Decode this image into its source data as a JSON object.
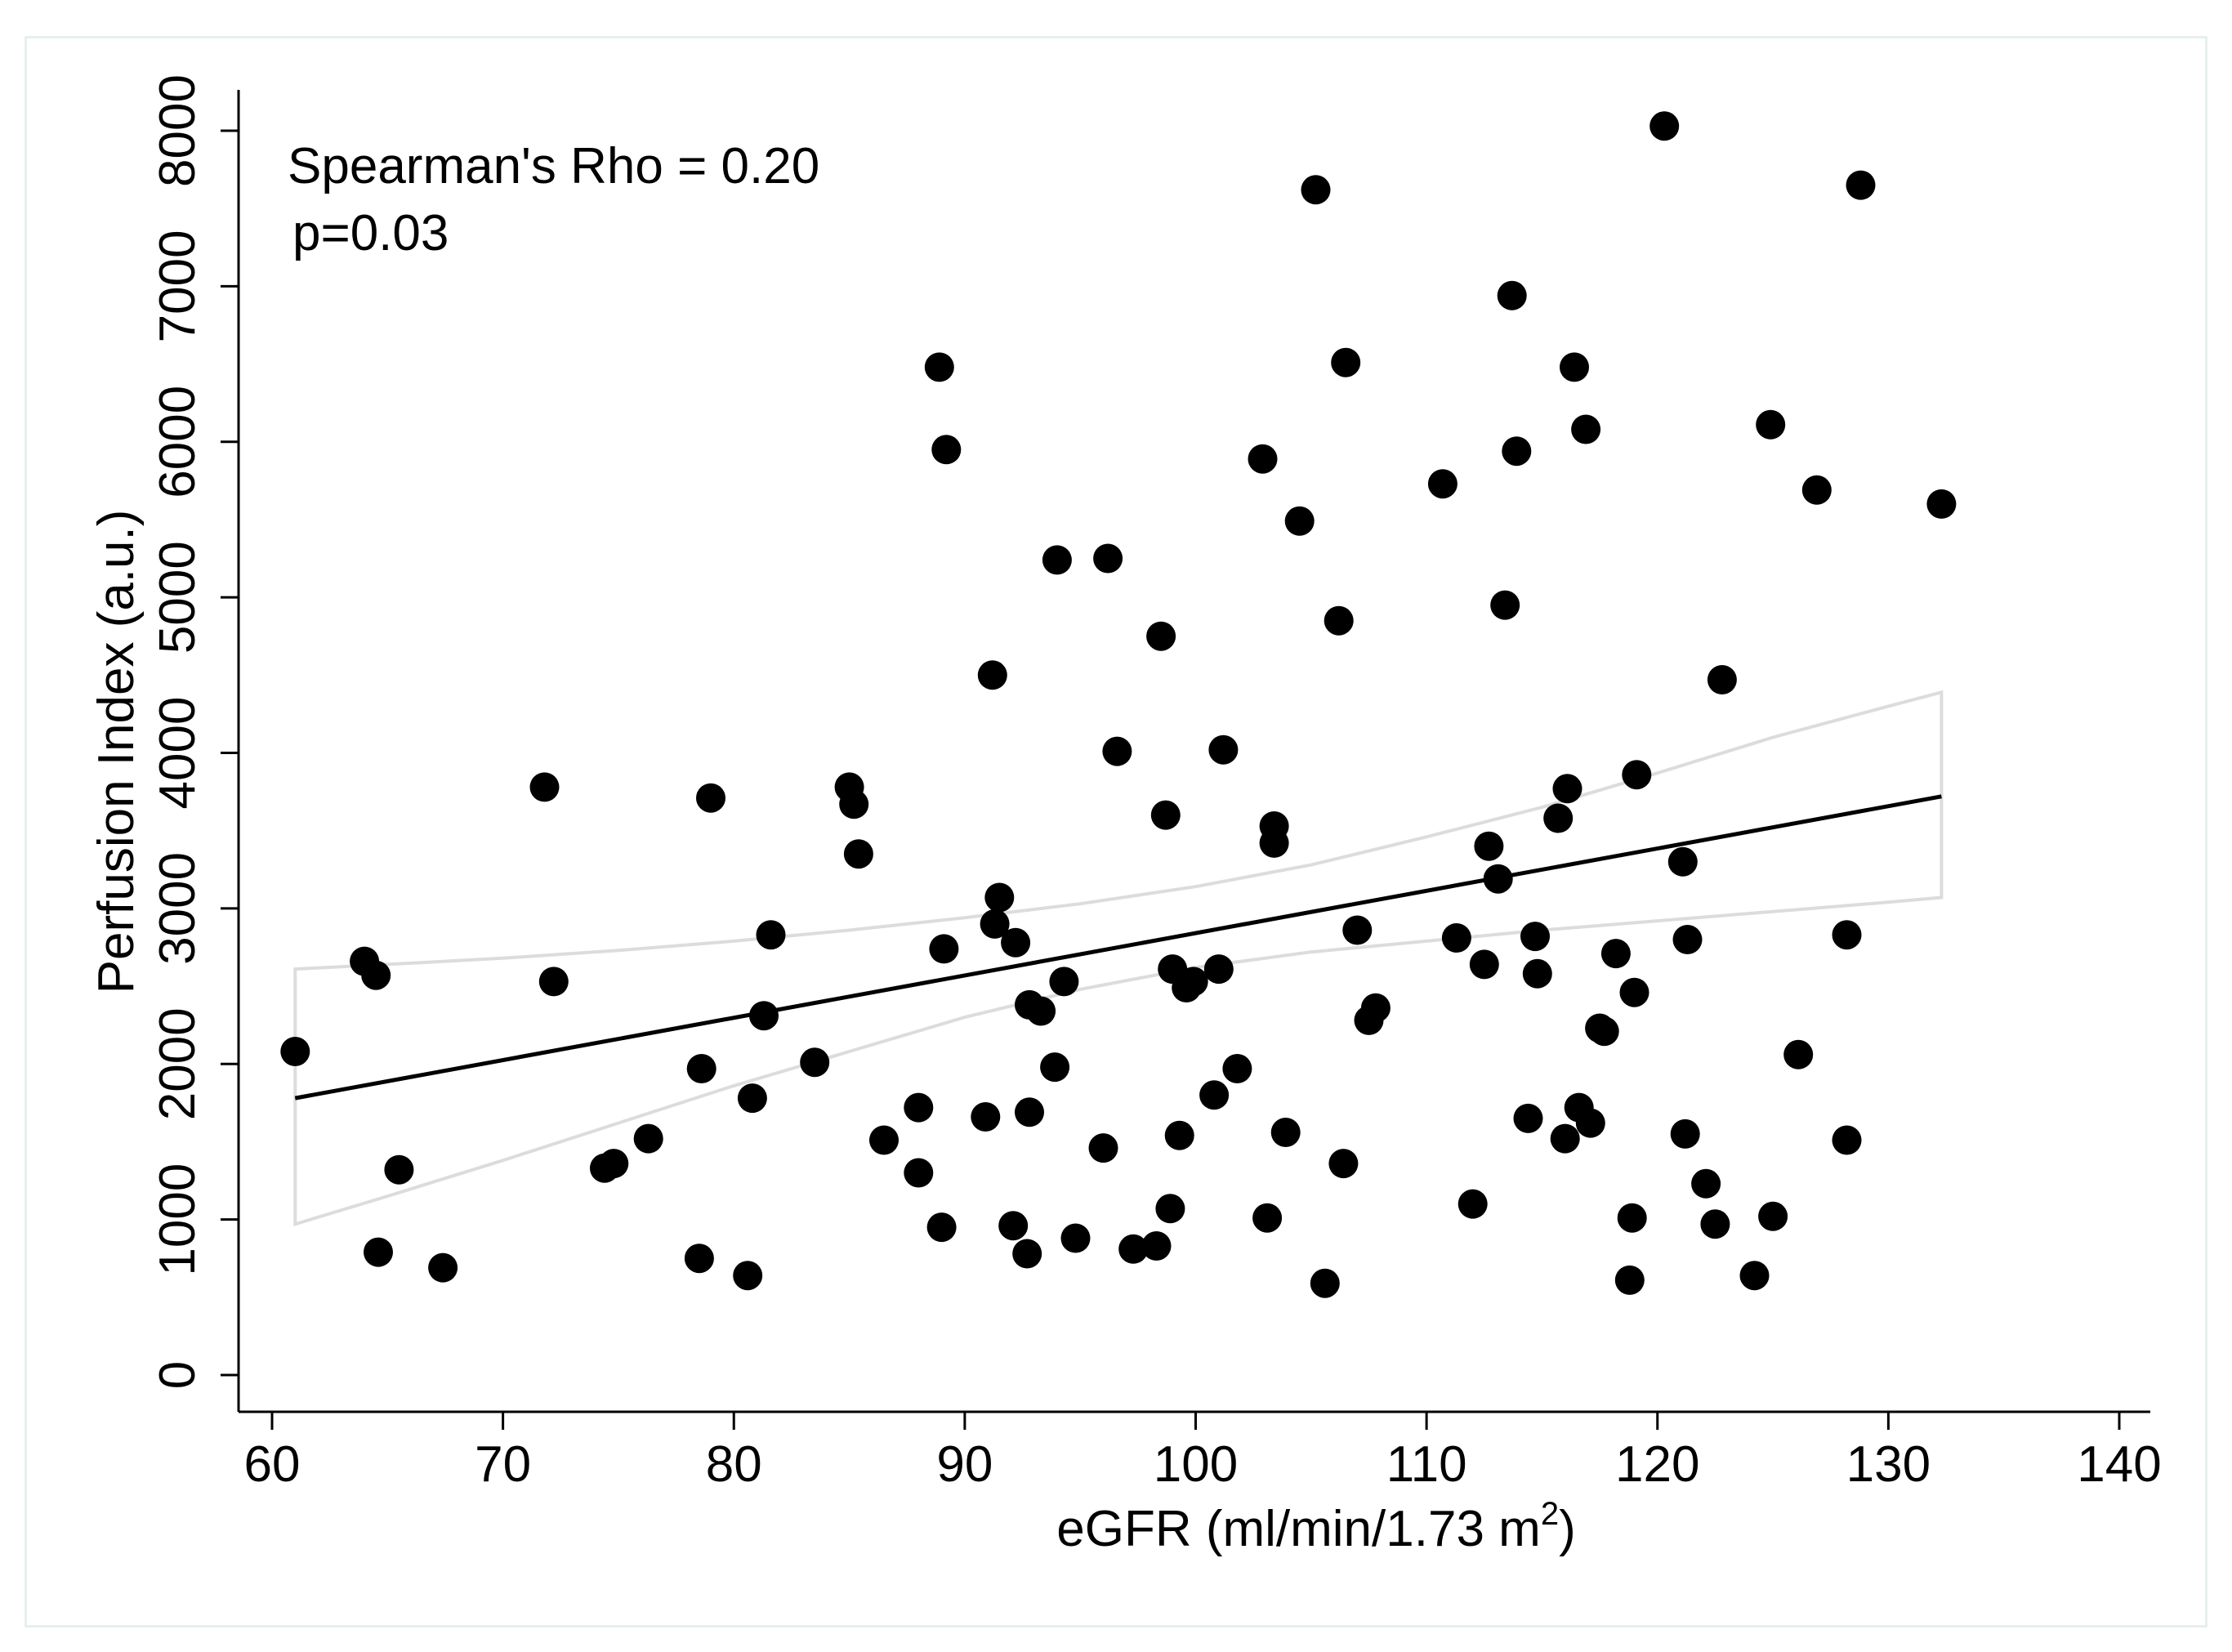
{
  "chart_data": {
    "type": "scatter",
    "title": "",
    "xlabel": "eGFR (ml/min/1.73 m",
    "xlabel_superscript": "2",
    "xlabel_close": ")",
    "ylabel": "Perfusion Index (a.u.)",
    "xlim": [
      58,
      140
    ],
    "ylim": [
      -200,
      8200
    ],
    "xticks": [
      60,
      70,
      80,
      90,
      100,
      110,
      120,
      130,
      140
    ],
    "yticks": [
      0,
      1000,
      2000,
      3000,
      4000,
      5000,
      6000,
      7000,
      8000
    ],
    "annotations": {
      "rho": "Spearman's Rho = 0.20",
      "p": "p=0.03"
    },
    "regression_line": {
      "x": [
        61,
        132.3
      ],
      "y": [
        1780,
        3720
      ]
    },
    "confidence_band": {
      "x": [
        61,
        65,
        70,
        75,
        80,
        85,
        90,
        95,
        100,
        105,
        110,
        115,
        120,
        125,
        130,
        132.3
      ],
      "upper": [
        2610,
        2640,
        2680,
        2730,
        2790,
        2860,
        2940,
        3030,
        3140,
        3280,
        3460,
        3650,
        3870,
        4100,
        4300,
        4390
      ],
      "lower": [
        970,
        1150,
        1380,
        1620,
        1860,
        2080,
        2300,
        2480,
        2620,
        2720,
        2790,
        2860,
        2920,
        2980,
        3040,
        3070
      ]
    },
    "points": [
      [
        61.0,
        2080
      ],
      [
        64.0,
        2660
      ],
      [
        64.5,
        2570
      ],
      [
        64.6,
        790
      ],
      [
        65.5,
        1320
      ],
      [
        67.4,
        690
      ],
      [
        71.8,
        3780
      ],
      [
        72.2,
        2530
      ],
      [
        74.4,
        1330
      ],
      [
        74.8,
        1360
      ],
      [
        76.3,
        1520
      ],
      [
        78.5,
        750
      ],
      [
        78.6,
        1970
      ],
      [
        79.0,
        3710
      ],
      [
        80.6,
        640
      ],
      [
        80.8,
        1780
      ],
      [
        81.3,
        2310
      ],
      [
        81.6,
        2830
      ],
      [
        83.5,
        2010
      ],
      [
        85.0,
        3780
      ],
      [
        85.2,
        3670
      ],
      [
        85.4,
        3350
      ],
      [
        86.5,
        1510
      ],
      [
        88.0,
        1720
      ],
      [
        88.0,
        1300
      ],
      [
        88.9,
        6480
      ],
      [
        89.0,
        950
      ],
      [
        89.1,
        2740
      ],
      [
        89.2,
        5950
      ],
      [
        90.9,
        1660
      ],
      [
        91.2,
        4500
      ],
      [
        91.3,
        2900
      ],
      [
        91.5,
        3070
      ],
      [
        92.1,
        960
      ],
      [
        92.2,
        2780
      ],
      [
        92.7,
        780
      ],
      [
        92.8,
        2380
      ],
      [
        92.8,
        1690
      ],
      [
        93.3,
        2340
      ],
      [
        93.9,
        1980
      ],
      [
        94.0,
        5240
      ],
      [
        94.3,
        2530
      ],
      [
        94.8,
        880
      ],
      [
        96.0,
        1460
      ],
      [
        96.2,
        5250
      ],
      [
        96.6,
        4010
      ],
      [
        97.3,
        810
      ],
      [
        98.3,
        830
      ],
      [
        98.5,
        4750
      ],
      [
        98.7,
        3600
      ],
      [
        98.9,
        1070
      ],
      [
        99.0,
        2610
      ],
      [
        99.3,
        1540
      ],
      [
        99.6,
        2490
      ],
      [
        99.9,
        2530
      ],
      [
        100.8,
        1800
      ],
      [
        101.0,
        2610
      ],
      [
        101.2,
        4020
      ],
      [
        101.8,
        1970
      ],
      [
        102.9,
        5890
      ],
      [
        103.1,
        1010
      ],
      [
        103.4,
        3530
      ],
      [
        103.4,
        3420
      ],
      [
        103.9,
        1560
      ],
      [
        104.5,
        5490
      ],
      [
        105.2,
        7620
      ],
      [
        105.6,
        590
      ],
      [
        106.2,
        4850
      ],
      [
        106.4,
        1360
      ],
      [
        106.5,
        6510
      ],
      [
        107.0,
        2860
      ],
      [
        107.5,
        2280
      ],
      [
        107.8,
        2360
      ],
      [
        110.7,
        5730
      ],
      [
        111.3,
        2810
      ],
      [
        112.0,
        1100
      ],
      [
        112.5,
        2640
      ],
      [
        112.7,
        3400
      ],
      [
        113.1,
        3190
      ],
      [
        113.4,
        4950
      ],
      [
        113.7,
        6940
      ],
      [
        113.9,
        5940
      ],
      [
        114.4,
        1650
      ],
      [
        114.7,
        2820
      ],
      [
        114.8,
        2580
      ],
      [
        115.7,
        3580
      ],
      [
        116.0,
        1520
      ],
      [
        116.1,
        3770
      ],
      [
        116.4,
        6480
      ],
      [
        116.6,
        1720
      ],
      [
        116.9,
        6080
      ],
      [
        117.1,
        1620
      ],
      [
        117.5,
        2230
      ],
      [
        117.7,
        2210
      ],
      [
        118.2,
        2710
      ],
      [
        118.8,
        610
      ],
      [
        118.9,
        1010
      ],
      [
        119.0,
        2460
      ],
      [
        119.1,
        3860
      ],
      [
        120.3,
        8030
      ],
      [
        121.1,
        3300
      ],
      [
        121.2,
        1550
      ],
      [
        121.3,
        2800
      ],
      [
        122.1,
        1230
      ],
      [
        122.5,
        970
      ],
      [
        122.8,
        4470
      ],
      [
        124.2,
        640
      ],
      [
        124.9,
        6110
      ],
      [
        125.0,
        1020
      ],
      [
        126.1,
        2060
      ],
      [
        126.9,
        5690
      ],
      [
        128.2,
        1510
      ],
      [
        128.2,
        2830
      ],
      [
        128.8,
        7650
      ],
      [
        132.3,
        5600
      ]
    ]
  }
}
